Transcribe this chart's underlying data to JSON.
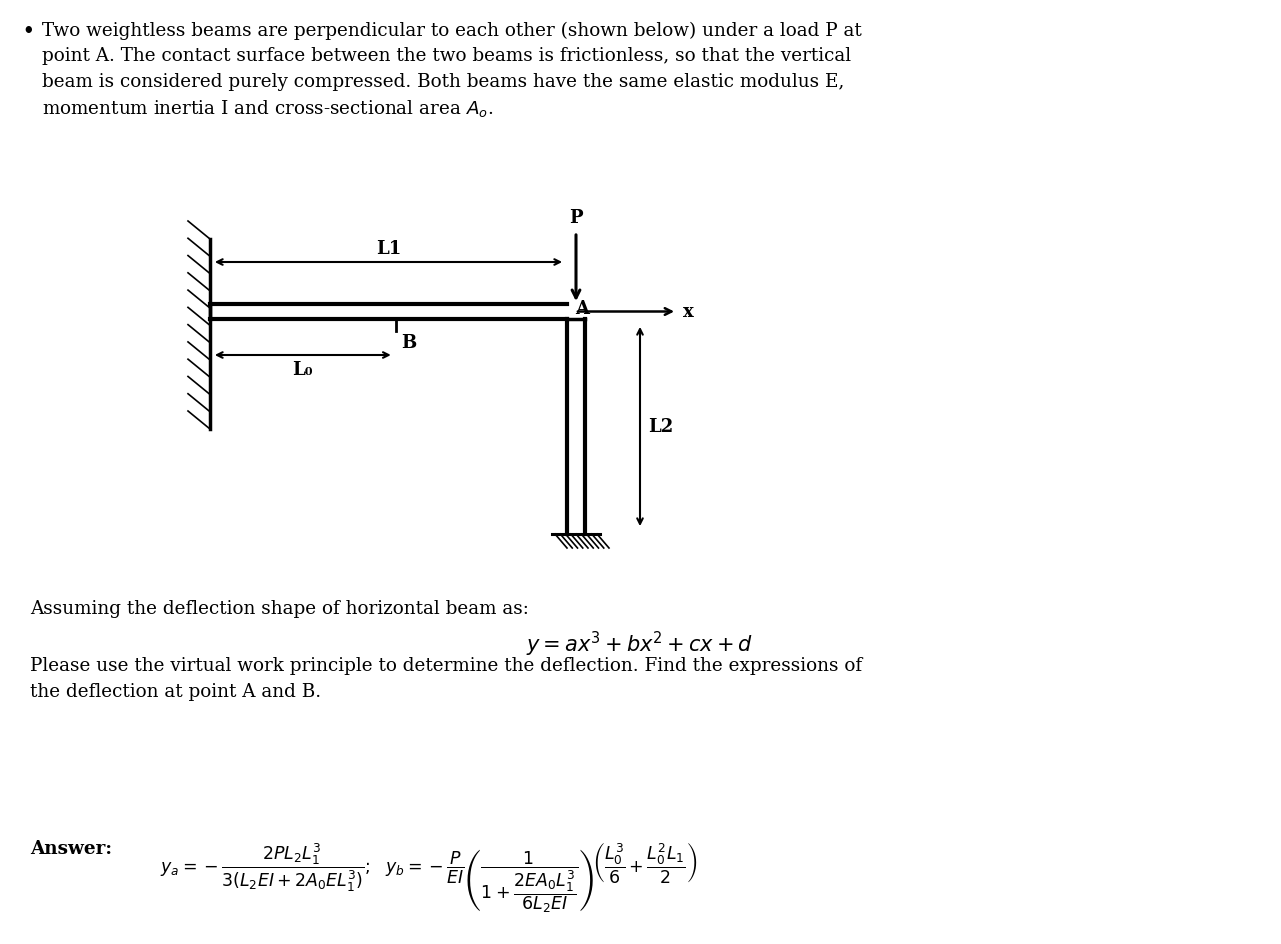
{
  "background_color": "#ffffff",
  "fig_width": 12.81,
  "fig_height": 9.45,
  "dpi": 100,
  "top_text_line1": "Two weightless beams are perpendicular to each other (shown below) under a load P at",
  "top_text_line2": "point A. The contact surface between the two beams is frictionless, so that the vertical",
  "top_text_line3": "beam is considered purely compressed. Both beams have the same elastic modulus E,",
  "top_text_line4": "momentum inertia I and cross-sectional area $A_o$.",
  "assuming_text": "Assuming the deflection shape of horizontal beam as:",
  "equation_text": "$y = ax^3 + bx^2 + cx + d$",
  "please_text1": "Please use the virtual work principle to determine the deflection. Find the expressions of",
  "please_text2": "the deflection at point A and B."
}
